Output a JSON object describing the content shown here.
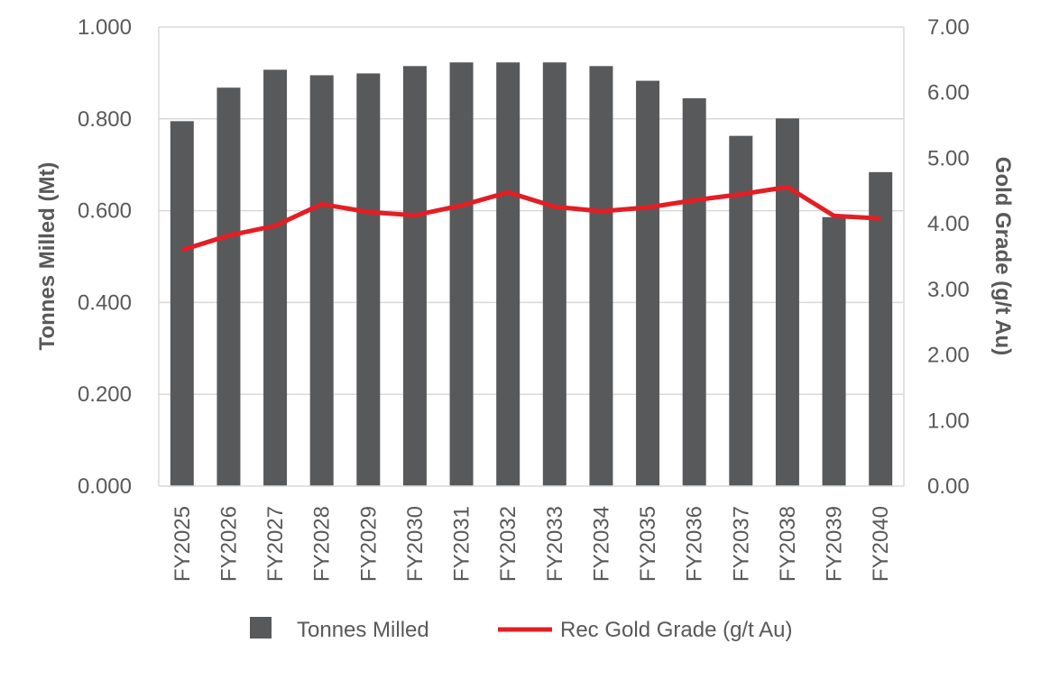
{
  "chart_data": {
    "type": "bar",
    "categories": [
      "FY2025",
      "FY2026",
      "FY2027",
      "FY2028",
      "FY2029",
      "FY2030",
      "FY2031",
      "FY2032",
      "FY2033",
      "FY2034",
      "FY2035",
      "FY2036",
      "FY2037",
      "FY2038",
      "FY2039",
      "FY2040"
    ],
    "series": [
      {
        "name": "Tonnes Milled",
        "type": "bar",
        "axis": "left",
        "color": "#58595b",
        "values": [
          0.795,
          0.868,
          0.907,
          0.895,
          0.899,
          0.915,
          0.923,
          0.923,
          0.923,
          0.915,
          0.883,
          0.845,
          0.763,
          0.801,
          0.586,
          0.684
        ]
      },
      {
        "name": "Rec Gold Grade (g/t Au)",
        "type": "line",
        "axis": "right",
        "color": "#e31e24",
        "values": [
          3.6,
          3.82,
          3.97,
          4.3,
          4.18,
          4.13,
          4.28,
          4.48,
          4.26,
          4.19,
          4.25,
          4.36,
          4.45,
          4.56,
          4.12,
          4.08
        ]
      }
    ],
    "y_left": {
      "label": "Tonnes Milled (Mt)",
      "ylim": [
        0,
        1.0
      ],
      "ticks": [
        0,
        0.2,
        0.4,
        0.6,
        0.8,
        1.0
      ],
      "tick_labels": [
        "0.000",
        "0.200",
        "0.400",
        "0.600",
        "0.800",
        "1.000"
      ]
    },
    "y_right": {
      "label": "Gold Grade (g/t Au)",
      "ylim": [
        0,
        7
      ],
      "ticks": [
        0,
        1,
        2,
        3,
        4,
        5,
        6,
        7
      ],
      "tick_labels": [
        "0.00",
        "1.00",
        "2.00",
        "3.00",
        "4.00",
        "5.00",
        "6.00",
        "7.00"
      ]
    },
    "grid": true,
    "legend": {
      "position": "bottom",
      "entries": [
        "Tonnes Milled",
        "Rec Gold Grade (g/t Au)"
      ]
    },
    "colors": {
      "grid": "#d9d9d9",
      "text": "#595959"
    }
  }
}
